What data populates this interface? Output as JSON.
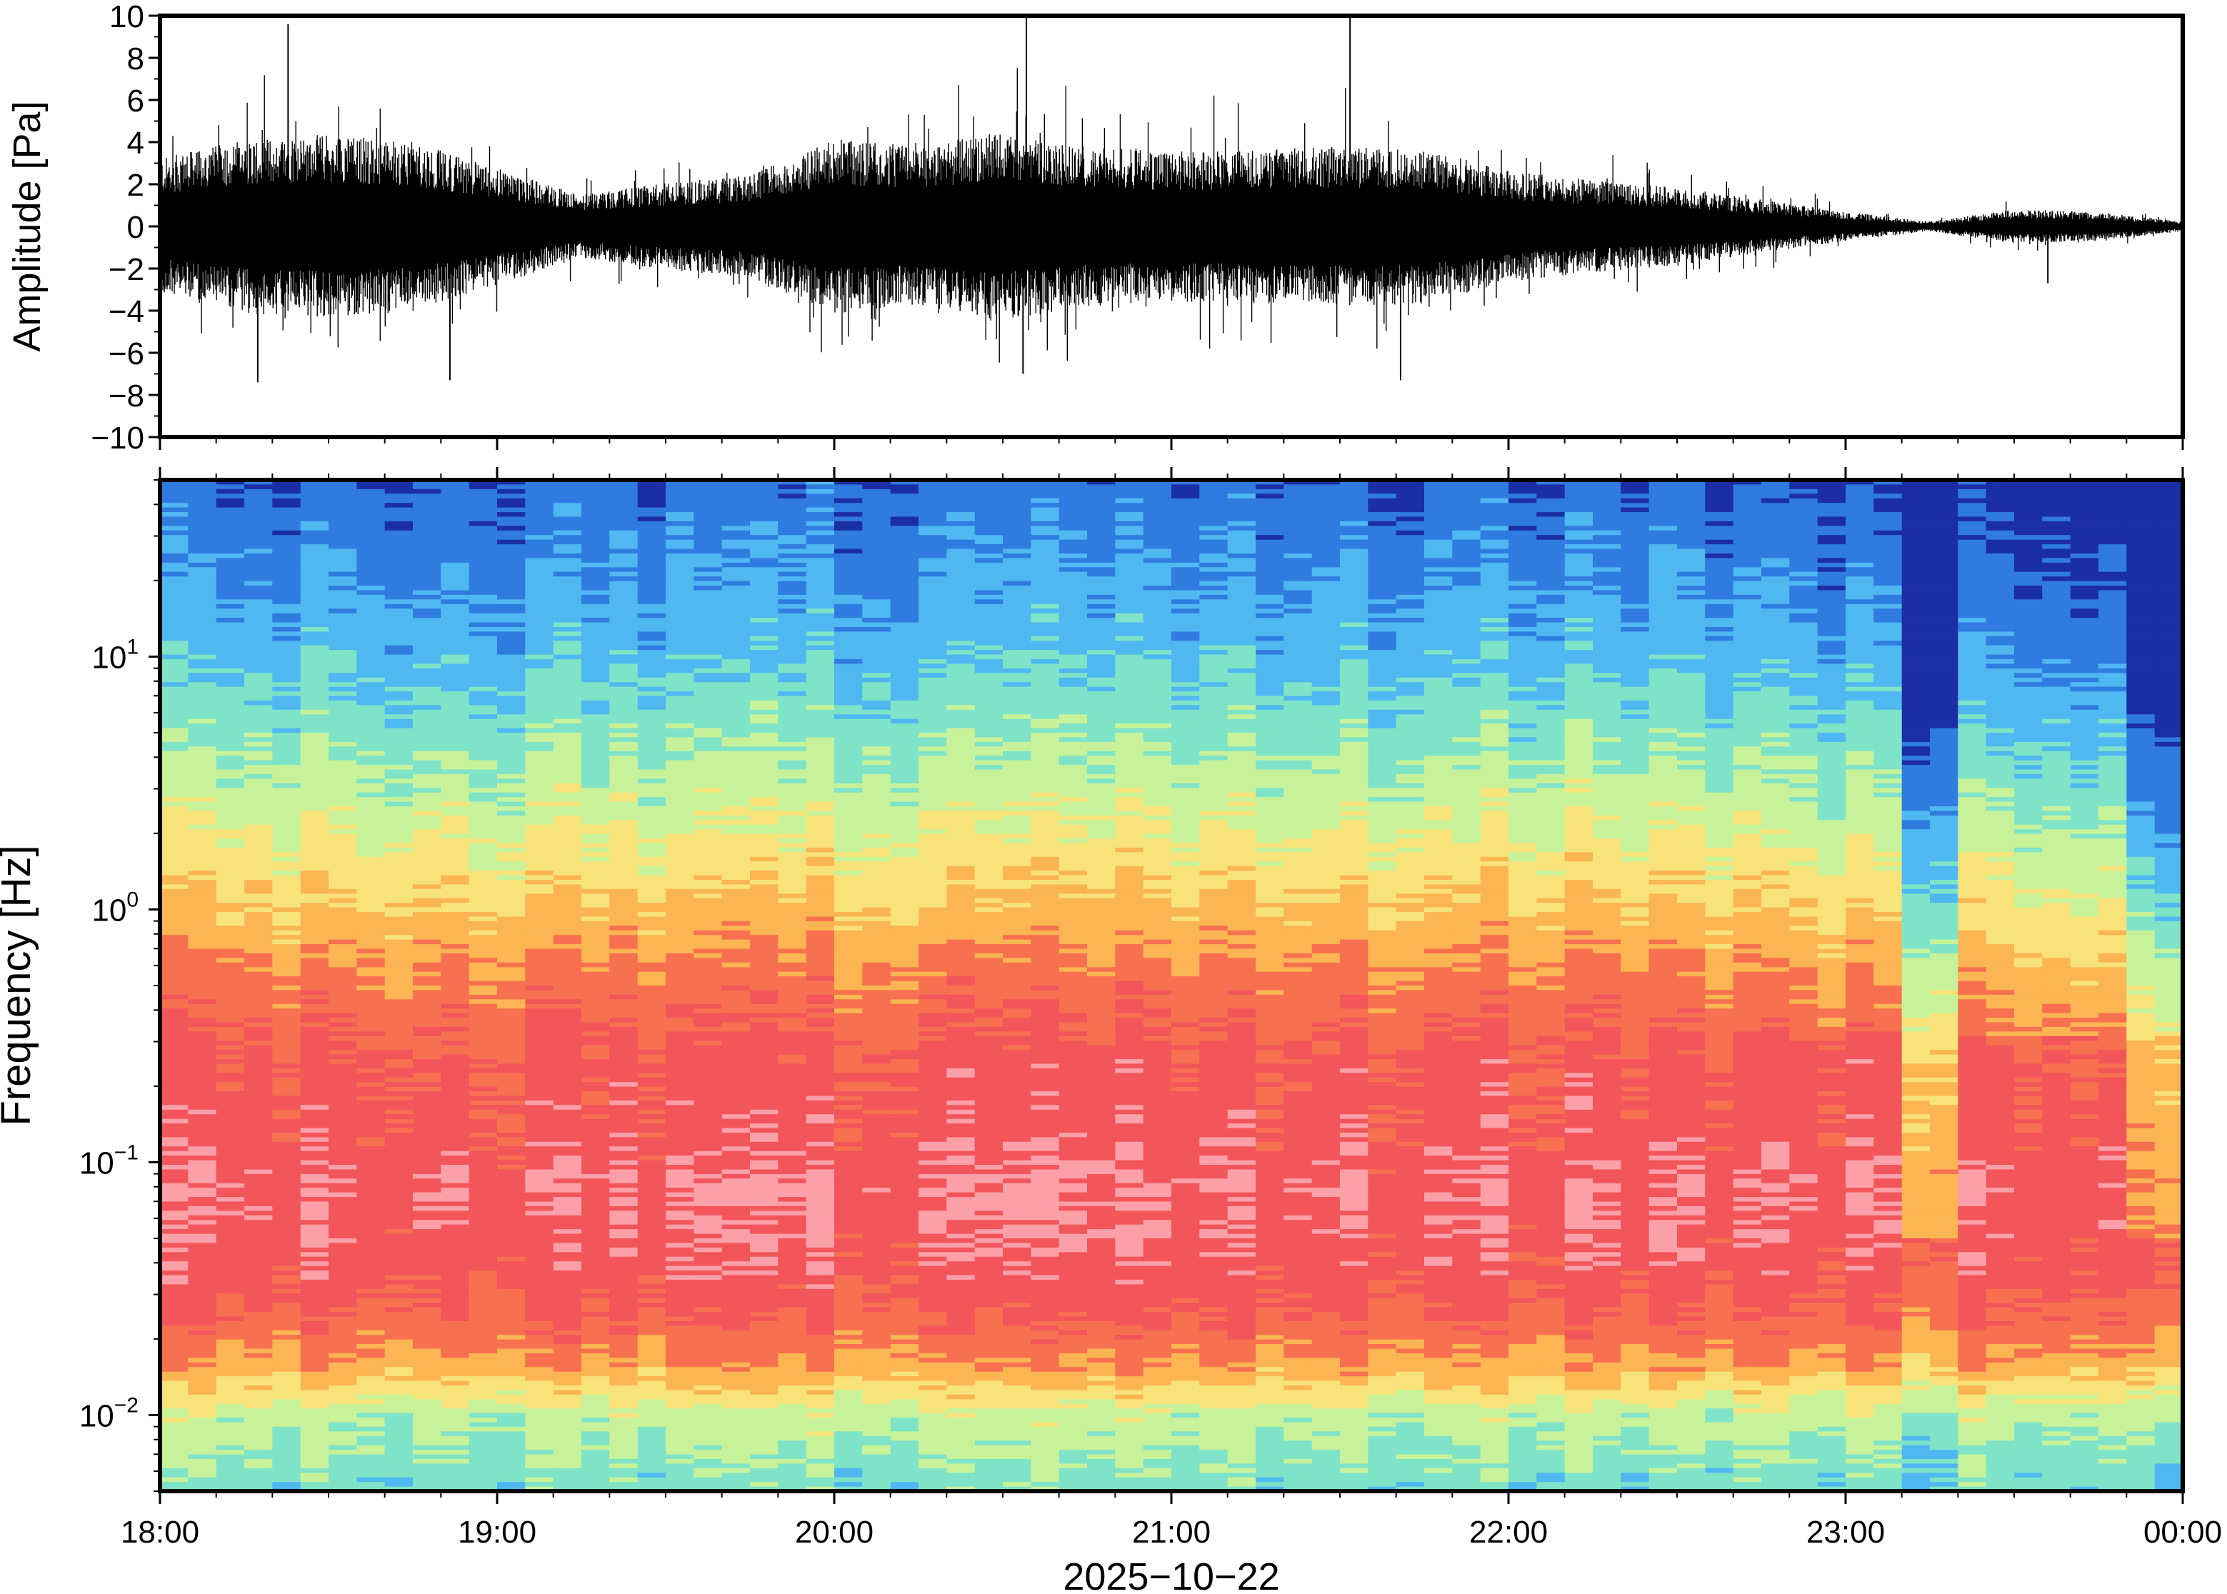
{
  "chart_data": [
    {
      "type": "line",
      "panel": "waveform",
      "ylabel": "Amplitude [Pa]",
      "ylim": [
        -10,
        10
      ],
      "yticks": [
        10,
        8,
        6,
        4,
        2,
        0,
        -2,
        -4,
        -6,
        -8,
        -10
      ],
      "ytick_labels": [
        "10",
        "8",
        "6",
        "4",
        "2",
        "0",
        "−2",
        "−4",
        "−6",
        "−8",
        "−10"
      ],
      "x_range_hours": [
        0,
        6
      ],
      "envelope": {
        "t_hours": [
          0.0,
          0.25,
          0.5,
          0.75,
          1.0,
          1.25,
          1.5,
          1.75,
          2.0,
          2.25,
          2.5,
          2.75,
          3.0,
          3.25,
          3.5,
          3.75,
          4.0,
          4.25,
          4.5,
          4.75,
          5.0,
          5.25,
          5.5,
          5.75,
          6.0
        ],
        "half_width_pa": [
          2.8,
          3.6,
          3.8,
          3.5,
          2.4,
          1.3,
          1.8,
          2.1,
          3.6,
          3.3,
          3.9,
          3.3,
          3.1,
          3.2,
          3.3,
          3.2,
          2.3,
          1.9,
          1.6,
          1.1,
          0.6,
          0.2,
          0.7,
          0.6,
          0.2
        ]
      },
      "peaks": [
        {
          "t_hours": 0.38,
          "value": 9.6
        },
        {
          "t_hours": 0.29,
          "value": -7.4
        },
        {
          "t_hours": 0.86,
          "value": -7.3
        },
        {
          "t_hours": 2.57,
          "value": 9.9
        },
        {
          "t_hours": 2.56,
          "value": -7.0
        },
        {
          "t_hours": 3.53,
          "value": 9.9
        },
        {
          "t_hours": 3.68,
          "value": -7.3
        },
        {
          "t_hours": 5.6,
          "value": -2.7
        }
      ]
    },
    {
      "type": "heatmap",
      "panel": "spectrogram",
      "ylabel": "Frequency [Hz]",
      "yscale": "log",
      "ylim": [
        0.005,
        50
      ],
      "yticks": [
        0.01,
        0.1,
        1,
        10
      ],
      "ytick_labels": [
        {
          "base": "10",
          "exp": "−2"
        },
        {
          "base": "10",
          "exp": "−1"
        },
        {
          "base": "10",
          "exp": "0"
        },
        {
          "base": "10",
          "exp": "1"
        }
      ],
      "xlabel": "2025−10−22",
      "xticks_hours": [
        0,
        1,
        2,
        3,
        4,
        5,
        6
      ],
      "xtick_labels": [
        "18:00",
        "19:00",
        "20:00",
        "21:00",
        "22:00",
        "23:00",
        "00:00"
      ],
      "colormap": [
        "#1b2ea3",
        "#2f7be0",
        "#4fb8f0",
        "#7fe3c8",
        "#c8f29a",
        "#f7e37a",
        "#fbb553",
        "#f7704f",
        "#f2555a",
        "#fba0a8"
      ],
      "level_profile": {
        "log10_freq": [
          1.7,
          1.3,
          1.0,
          0.6,
          0.3,
          0.0,
          -0.3,
          -0.6,
          -0.9,
          -1.1,
          -1.4,
          -1.6,
          -1.8,
          -2.0,
          -2.3
        ],
        "level": [
          0.12,
          0.2,
          0.27,
          0.4,
          0.5,
          0.62,
          0.74,
          0.83,
          0.85,
          0.89,
          0.86,
          0.8,
          0.68,
          0.45,
          0.34
        ]
      },
      "quiet_intervals_hours": [
        [
          5.2,
          5.3
        ],
        [
          5.8,
          6.0
        ]
      ]
    }
  ]
}
